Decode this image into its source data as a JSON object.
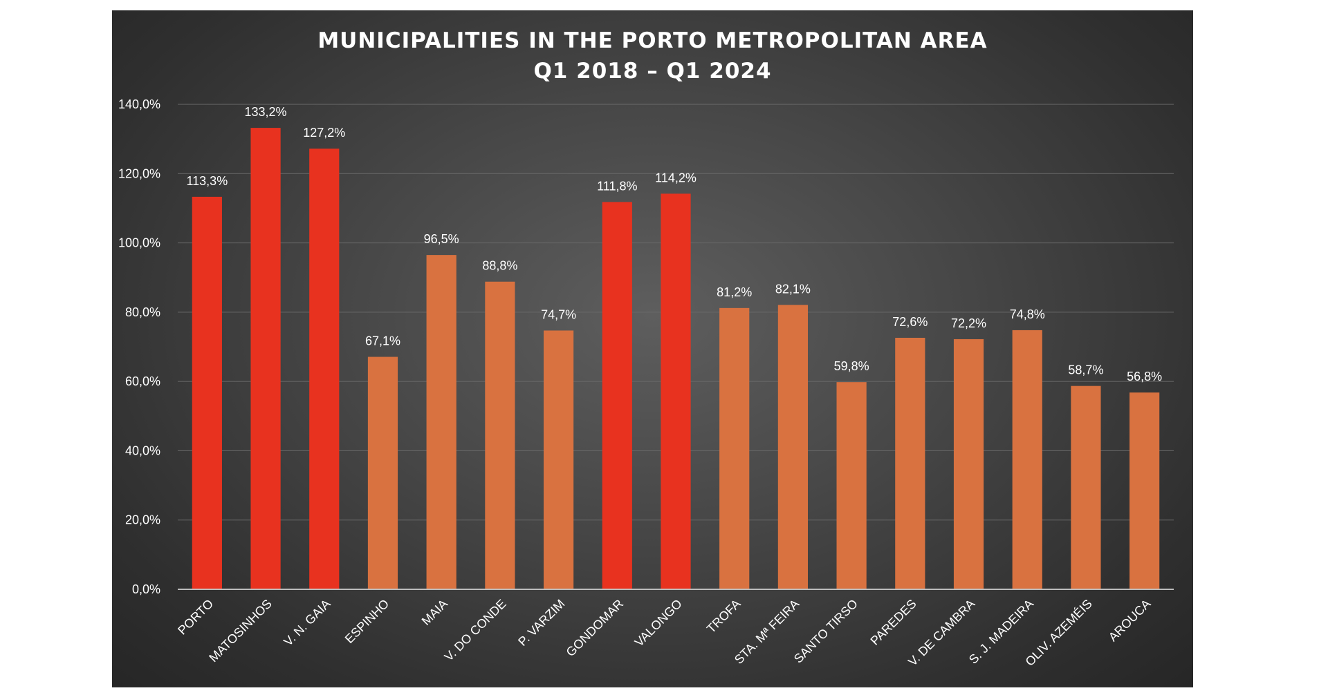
{
  "chart_data": {
    "type": "bar",
    "title": [
      "MUNICIPALITIES IN THE PORTO METROPOLITAN AREA",
      "Q1 2018 – Q1 2024"
    ],
    "xlabel": "",
    "ylabel": "",
    "ylim": [
      0,
      140
    ],
    "yticks": [
      "0,0%",
      "20,0%",
      "40,0%",
      "60,0%",
      "80,0%",
      "100,0%",
      "120,0%",
      "140,0%"
    ],
    "grid": true,
    "categories": [
      "PORTO",
      "MATOSINHOS",
      "V. N. GAIA",
      "ESPINHO",
      "MAIA",
      "V. DO CONDE",
      "P. VARZIM",
      "GONDOMAR",
      "VALONGO",
      "TROFA",
      "STA. Mª FEIRA",
      "SANTO TIRSO",
      "PAREDES",
      "V. DE CAMBRA",
      "S. J. MADEIRA",
      "OLIV. AZEMÉIS",
      "AROUCA"
    ],
    "values": [
      113.3,
      133.2,
      127.2,
      67.1,
      96.5,
      88.8,
      74.7,
      111.8,
      114.2,
      81.2,
      82.1,
      59.8,
      72.6,
      72.2,
      74.8,
      58.7,
      56.8
    ],
    "value_labels": [
      "113,3%",
      "133,2%",
      "127,2%",
      "67,1%",
      "96,5%",
      "88,8%",
      "74,7%",
      "111,8%",
      "114,2%",
      "81,2%",
      "82,1%",
      "59,8%",
      "72,6%",
      "72,2%",
      "74,8%",
      "58,7%",
      "56,8%"
    ],
    "highlighted": [
      true,
      true,
      true,
      false,
      false,
      false,
      false,
      true,
      true,
      false,
      false,
      false,
      false,
      false,
      false,
      false,
      false
    ],
    "colors": {
      "highlight": "#e8321f",
      "default": "#d97240",
      "gridline": "#6a6a6a",
      "axis": "#bdbdbd",
      "background": "#3d3d3d"
    }
  }
}
